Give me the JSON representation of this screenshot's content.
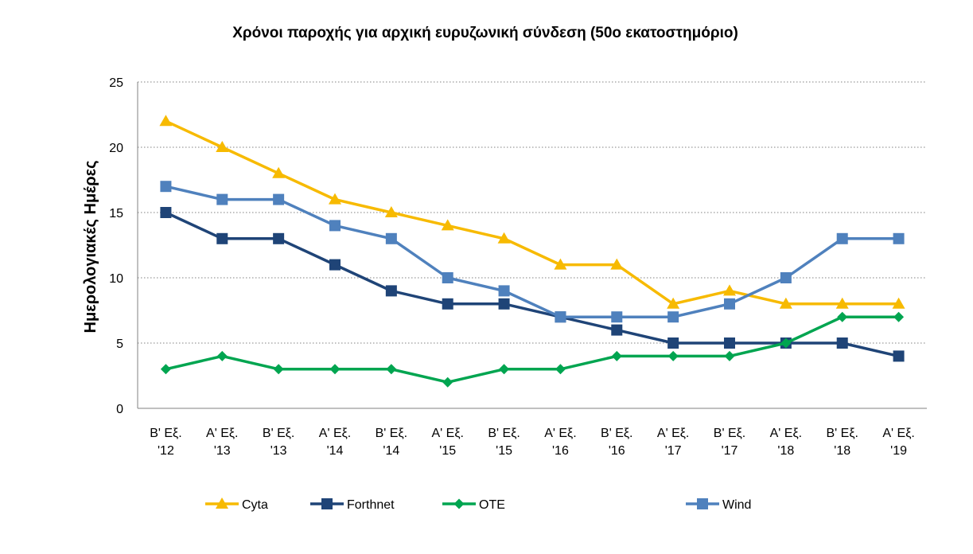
{
  "chart_data": {
    "type": "line",
    "title": "Χρόνοι παροχής για αρχική ευρυζωνική σύνδεση (50ο εκατοστημόριο)",
    "xlabel": "",
    "ylabel": "Ημερολογιακές Ημέρες",
    "ylim": [
      0,
      25
    ],
    "yticks": [
      "0",
      "5",
      "10",
      "15",
      "20",
      "25"
    ],
    "ytick_values": [
      0,
      5,
      10,
      15,
      20,
      25
    ],
    "grid": true,
    "legend_position": "bottom",
    "categories": [
      [
        "Β' Εξ.",
        "'12"
      ],
      [
        "Α' Εξ.",
        "'13"
      ],
      [
        "Β' Εξ.",
        "'13"
      ],
      [
        "Α' Εξ.",
        "'14"
      ],
      [
        "Β' Εξ.",
        "'14"
      ],
      [
        "Α' Εξ.",
        "'15"
      ],
      [
        "Β' Εξ.",
        "'15"
      ],
      [
        "Α' Εξ.",
        "'16"
      ],
      [
        "Β' Εξ.",
        "'16"
      ],
      [
        "Α' Εξ.",
        "'17"
      ],
      [
        "Β' Εξ.",
        "'17"
      ],
      [
        "Α' Εξ.",
        "'18"
      ],
      [
        "Β' Εξ.",
        "'18"
      ],
      [
        "Α' Εξ.",
        "'19"
      ]
    ],
    "series": [
      {
        "name": "Cyta",
        "color": "#F7BA00",
        "marker": "triangle",
        "values": [
          22,
          20,
          18,
          16,
          15,
          14,
          13,
          11,
          11,
          8,
          9,
          8,
          8,
          8
        ]
      },
      {
        "name": "Forthnet",
        "color": "#1F4477",
        "marker": "square",
        "values": [
          15,
          13,
          13,
          11,
          9,
          8,
          8,
          7,
          6,
          5,
          5,
          5,
          5,
          4
        ]
      },
      {
        "name": "OTE",
        "color": "#00A550",
        "marker": "diamond",
        "values": [
          3,
          4,
          3,
          3,
          3,
          2,
          3,
          3,
          4,
          4,
          4,
          5,
          7,
          7
        ]
      },
      {
        "name": "Wind",
        "color": "#4F81BD",
        "marker": "square",
        "values": [
          17,
          16,
          16,
          14,
          13,
          10,
          9,
          7,
          7,
          7,
          8,
          10,
          13,
          13
        ]
      }
    ]
  }
}
